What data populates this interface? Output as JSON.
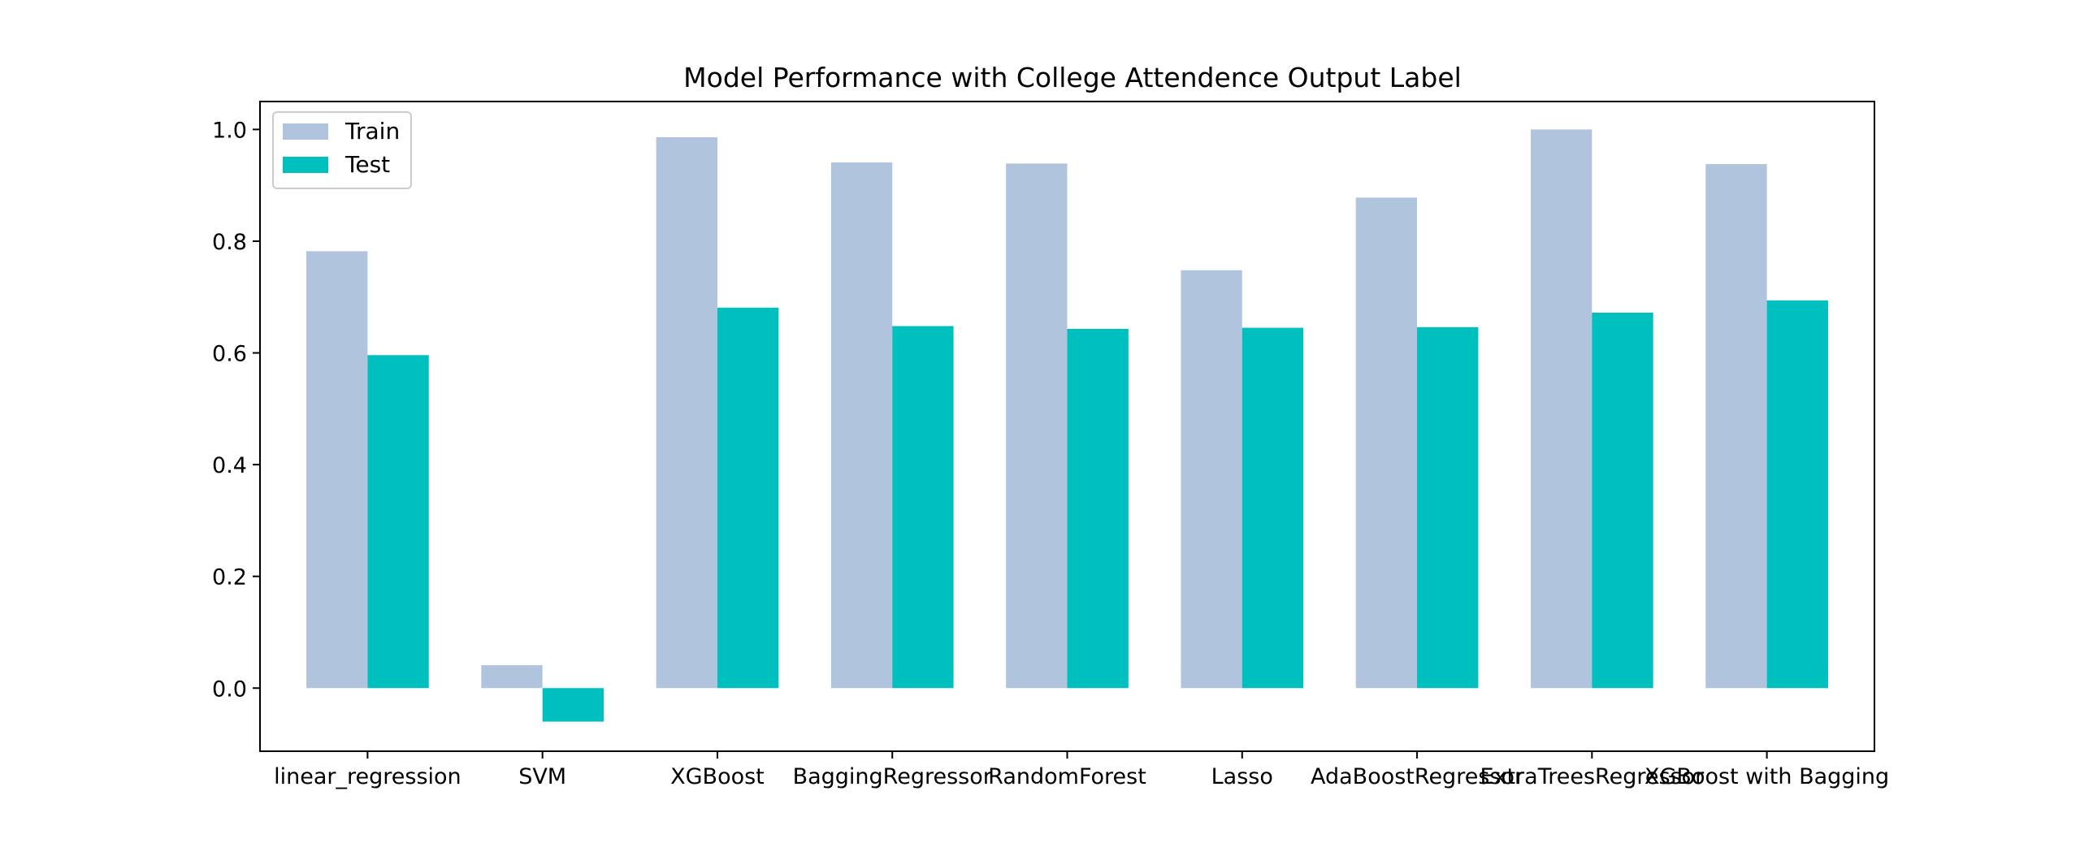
{
  "chart_data": {
    "type": "bar",
    "title": "Model Performance with College Attendence Output Label",
    "xlabel": "",
    "ylabel": "",
    "categories": [
      "linear_regression",
      "SVM",
      "XGBoost",
      "BaggingRegressor",
      "RandomForest",
      "Lasso",
      "AdaBoostRegressor",
      "ExtraTreesRegressor",
      "XGBoost with Bagging"
    ],
    "series": [
      {
        "name": "Train",
        "color": "#b0c4de",
        "values": [
          0.782,
          0.041,
          0.986,
          0.941,
          0.939,
          0.748,
          0.878,
          1.0,
          0.938
        ]
      },
      {
        "name": "Test",
        "color": "#00bfbf",
        "values": [
          0.596,
          -0.06,
          0.681,
          0.648,
          0.643,
          0.645,
          0.646,
          0.672,
          0.694
        ]
      }
    ],
    "ylim": [
      -0.113,
      1.05
    ],
    "yticks": [
      "0.0",
      "0.2",
      "0.4",
      "0.6",
      "0.8",
      "1.0"
    ],
    "grid": false,
    "legend_position": "top-left"
  }
}
